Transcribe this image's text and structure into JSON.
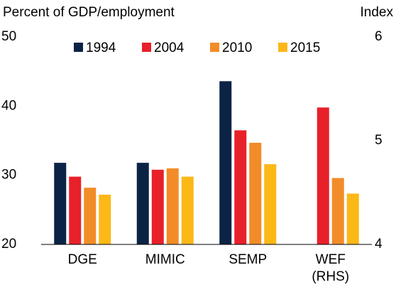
{
  "chart_data": {
    "type": "bar",
    "y_axis_label": "Percent of GDP/employment",
    "y2_axis_label": "Index",
    "categories": [
      "DGE",
      "MIMIC",
      "SEMP",
      "WEF (RHS)"
    ],
    "category_axis": [
      "y",
      "y",
      "y",
      "y2"
    ],
    "series": [
      {
        "name": "1994",
        "color": "#0b2345",
        "values": [
          31.8,
          31.8,
          43.6,
          null
        ]
      },
      {
        "name": "2004",
        "color": "#e8202a",
        "values": [
          29.8,
          30.8,
          36.5,
          5.32
        ]
      },
      {
        "name": "2010",
        "color": "#f28c28",
        "values": [
          28.2,
          31.0,
          34.7,
          4.64
        ]
      },
      {
        "name": "2015",
        "color": "#fbb817",
        "values": [
          27.2,
          29.8,
          31.6,
          4.49
        ]
      }
    ],
    "ylim": [
      20,
      50
    ],
    "yticks": [
      20,
      30,
      40,
      50
    ],
    "y2lim": [
      4,
      6
    ],
    "y2ticks": [
      4,
      5,
      6
    ]
  }
}
